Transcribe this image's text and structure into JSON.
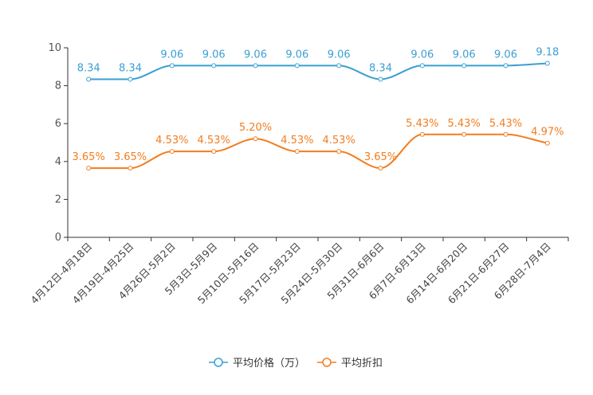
{
  "chart_data": {
    "type": "line",
    "title": "",
    "xlabel": "",
    "ylabel": "",
    "ylim": [
      0,
      10
    ],
    "yticks": [
      0,
      2,
      4,
      6,
      8,
      10
    ],
    "categories": [
      "4月12日-4月18日",
      "4月19日-4月25日",
      "4月26日-5月2日",
      "5月3日-5月9日",
      "5月10日-5月16日",
      "5月17日-5月23日",
      "5月24日-5月30日",
      "5月31日-6月6日",
      "6月7日-6月13日",
      "6月14日-6月20日",
      "6月21日-6月27日",
      "6月28日-7月4日"
    ],
    "series": [
      {
        "name": "平均价格（万）",
        "color": "#3a9fd3",
        "values": [
          8.34,
          8.34,
          9.06,
          9.06,
          9.06,
          9.06,
          9.06,
          8.34,
          9.06,
          9.06,
          9.06,
          9.18
        ],
        "labels": [
          "8.34",
          "8.34",
          "9.06",
          "9.06",
          "9.06",
          "9.06",
          "9.06",
          "8.34",
          "9.06",
          "9.06",
          "9.06",
          "9.18"
        ]
      },
      {
        "name": "平均折扣",
        "color": "#f27d1f",
        "values": [
          3.65,
          3.65,
          4.53,
          4.53,
          5.2,
          4.53,
          4.53,
          3.65,
          5.43,
          5.43,
          5.43,
          4.97
        ],
        "labels": [
          "3.65%",
          "3.65%",
          "4.53%",
          "4.53%",
          "5.20%",
          "4.53%",
          "4.53%",
          "3.65%",
          "5.43%",
          "5.43%",
          "5.43%",
          "4.97%"
        ]
      }
    ],
    "legend": "bottom-center",
    "grid": false
  }
}
